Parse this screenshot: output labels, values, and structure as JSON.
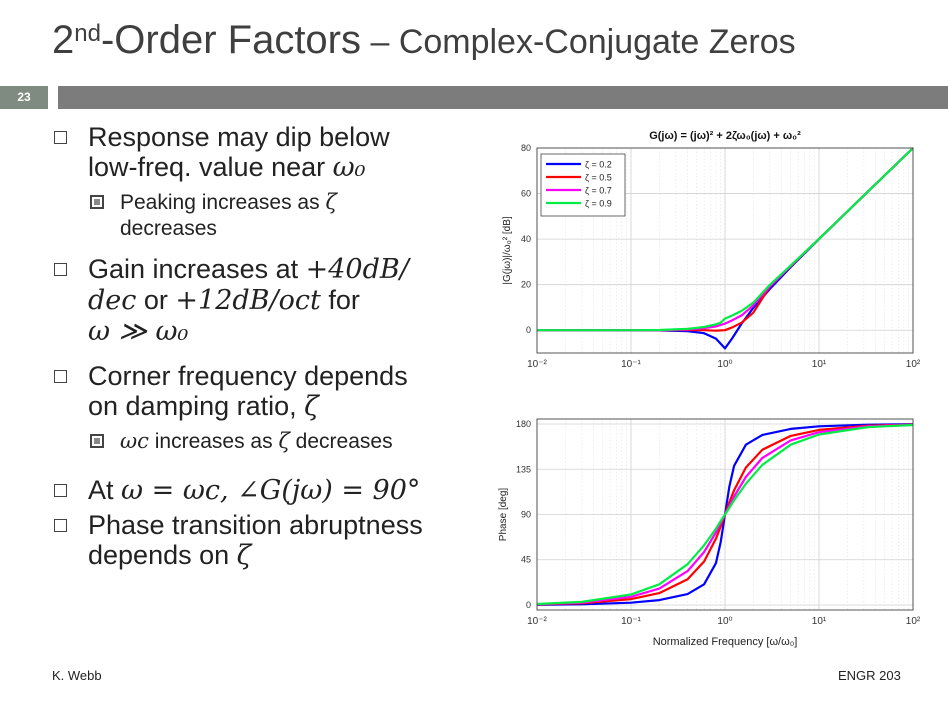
{
  "slide": {
    "title_prefix": "2",
    "title_sup": "nd",
    "title_main": "-Order Factors",
    "title_dash": " – ",
    "title_sub": "Complex-Conjugate Zeros",
    "number": "23"
  },
  "bullets": {
    "b1_line1": "Response may dip below",
    "b1_line2": "low-freq. value near ",
    "b1_omega0": "ω₀",
    "b1a_line1": "Peaking increases as ",
    "b1a_zeta": "ζ",
    "b1a_line2": "decreases",
    "b2_line1": "Gain increases at ",
    "b2_rate1": "+40dB/",
    "b2_rate2": "dec",
    "b2_or": " or ",
    "b2_rate3": "+12dB/oct",
    "b2_for": " for",
    "b2_cond": "ω ≫ ω₀",
    "b3_line1": "Corner frequency depends",
    "b3_line2": "on damping ratio, ",
    "b3_zeta": "ζ",
    "b3a_wc": "ωc",
    "b3a_text": " increases as ",
    "b3a_zeta": "ζ",
    "b3a_end": " decreases",
    "b4_at": "At ",
    "b4_eq": "ω = ωc, ∠G(jω) = 90°",
    "b5_line1": "Phase transition abruptness",
    "b5_line2": "depends on ",
    "b5_zeta": "ζ"
  },
  "footer": {
    "author": "K. Webb",
    "course": "ENGR 203"
  },
  "colors": {
    "zeta_0.2": "#0000ff",
    "zeta_0.5": "#ff0000",
    "zeta_0.7": "#ff00ff",
    "zeta_0.9": "#00ee44",
    "slide_number_bg": "#7f8a80",
    "rule_bar": "#7c7c7c"
  },
  "chart_data": [
    {
      "type": "line",
      "title": "G(jω) = (jω)² + 2ζω₀(jω) + ω₀²",
      "xlabel": "",
      "ylabel": "|G(jω)|/ω₀² [dB]",
      "xscale": "log",
      "xlim": [
        0.01,
        100
      ],
      "ylim": [
        -10,
        80
      ],
      "xticks": [
        0.01,
        0.1,
        1,
        10,
        100
      ],
      "xtick_labels": [
        "10⁻²",
        "10⁻¹",
        "10⁰",
        "10¹",
        "10²"
      ],
      "yticks": [
        0,
        20,
        40,
        60,
        80
      ],
      "ytick_labels": [
        "0",
        "20",
        "40",
        "60",
        "80"
      ],
      "grid": true,
      "legend_position": "top-left",
      "x": [
        0.01,
        0.03,
        0.1,
        0.2,
        0.4,
        0.6,
        0.8,
        0.9,
        1.0,
        1.2,
        1.5,
        2,
        3,
        5,
        10,
        30,
        100
      ],
      "series": [
        {
          "name": "ζ = 0.2",
          "color": "#0000ff",
          "values": [
            0,
            0,
            -0.05,
            -0.1,
            -0.4,
            -1.3,
            -3.7,
            -5.9,
            -7.96,
            -3.4,
            2.9,
            9.8,
            18.1,
            27.7,
            40.0,
            59.1,
            80.0
          ]
        },
        {
          "name": "ζ = 0.5",
          "color": "#ff0000",
          "values": [
            0,
            0,
            0,
            0,
            0.1,
            0.0,
            -0.2,
            -0.1,
            0,
            1.3,
            3.3,
            7.7,
            19.1,
            28.1,
            40.1,
            59.1,
            80.0
          ]
        },
        {
          "name": "ζ = 0.7",
          "color": "#ff00ff",
          "values": [
            0,
            0,
            0,
            0.03,
            0.3,
            0.9,
            1.7,
            2.3,
            2.9,
            4.4,
            6.5,
            10.9,
            19.3,
            28.2,
            40.1,
            59.1,
            80.0
          ]
        },
        {
          "name": "ζ = 0.9",
          "color": "#00ee44",
          "values": [
            0,
            0,
            0.03,
            0.1,
            0.6,
            1.4,
            2.6,
            3.3,
            5.1,
            6.5,
            8.5,
            12.1,
            19.9,
            28.4,
            40.1,
            59.1,
            80.0
          ]
        }
      ]
    },
    {
      "type": "line",
      "title": "",
      "xlabel": "Normalized Frequency [ω/ω₀]",
      "ylabel": "Phase [deg]",
      "xscale": "log",
      "xlim": [
        0.01,
        100
      ],
      "ylim": [
        -5,
        185
      ],
      "xticks": [
        0.01,
        0.1,
        1,
        10,
        100
      ],
      "xtick_labels": [
        "10⁻²",
        "10⁻¹",
        "10⁰",
        "10¹",
        "10²"
      ],
      "yticks": [
        0,
        45,
        90,
        135,
        180
      ],
      "ytick_labels": [
        "0",
        "45",
        "90",
        "135",
        "180"
      ],
      "grid": true,
      "x": [
        0.01,
        0.03,
        0.1,
        0.2,
        0.4,
        0.6,
        0.8,
        0.9,
        1.0,
        1.11,
        1.25,
        1.67,
        2.5,
        5,
        10,
        33,
        100
      ],
      "series": [
        {
          "name": "ζ = 0.2",
          "color": "#0000ff",
          "values": [
            0.2,
            0.7,
            2.3,
            4.8,
            10.8,
            20.6,
            41.6,
            62.5,
            90,
            117.5,
            138.4,
            159.4,
            169.2,
            175.2,
            177.7,
            179.3,
            179.8
          ]
        },
        {
          "name": "ζ = 0.5",
          "color": "#ff0000",
          "values": [
            0.6,
            1.7,
            5.8,
            11.8,
            25.5,
            43.2,
            65.8,
            78.1,
            90,
            101.9,
            114.2,
            136.8,
            154.5,
            168.2,
            174.2,
            178.3,
            179.4
          ]
        },
        {
          "name": "ζ = 0.7",
          "color": "#ff00ff",
          "values": [
            0.8,
            2.4,
            8.1,
            16.3,
            33.7,
            52.7,
            72.1,
            81.7,
            90,
            98.3,
            107.9,
            127.3,
            146.3,
            163.7,
            171.9,
            177.6,
            179.2
          ]
        },
        {
          "name": "ζ = 0.9",
          "color": "#00ee44",
          "values": [
            1.0,
            3.1,
            10.4,
            20.6,
            40.6,
            59.4,
            75.9,
            83.4,
            90,
            96.6,
            104.1,
            120.6,
            139.4,
            159.4,
            169.6,
            176.9,
            179.0
          ]
        }
      ]
    }
  ]
}
